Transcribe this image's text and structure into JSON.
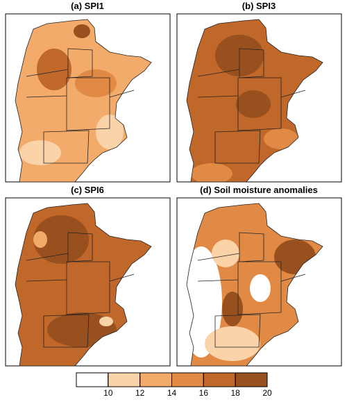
{
  "panels": [
    {
      "title": "(a)  SPI1"
    },
    {
      "title": "(b)  SPI3"
    },
    {
      "title": "(c)  SPI6"
    },
    {
      "title": "(d)  Soil moisture anomalies"
    }
  ],
  "colorbar": {
    "ticks": [
      10,
      12,
      14,
      16,
      18,
      20
    ],
    "colors": [
      "#ffffff",
      "#fbd3a8",
      "#f3ab6b",
      "#e08a45",
      "#c0672a",
      "#99501f"
    ]
  }
}
